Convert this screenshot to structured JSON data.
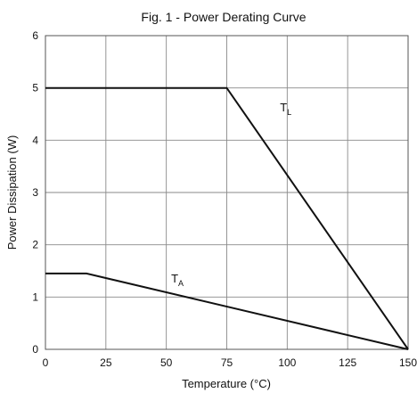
{
  "chart_data": {
    "type": "line",
    "title": "Fig. 1 - Power Derating Curve",
    "xlabel": "Temperature (°C)",
    "ylabel": "Power Dissipation (W)",
    "xlim": [
      0,
      150
    ],
    "ylim": [
      0,
      6
    ],
    "grid": true,
    "xticks": [
      "0",
      "25",
      "50",
      "75",
      "100",
      "125",
      "150"
    ],
    "yticks": [
      "0",
      "1",
      "2",
      "3",
      "4",
      "5",
      "6"
    ],
    "series": [
      {
        "name": "TL",
        "label_main": "T",
        "label_sub": "L",
        "x": [
          0,
          75,
          150
        ],
        "y": [
          5,
          5,
          0
        ]
      },
      {
        "name": "TA",
        "label_main": "T",
        "label_sub": "A",
        "x": [
          0,
          17,
          150
        ],
        "y": [
          1.45,
          1.45,
          0
        ]
      }
    ]
  }
}
